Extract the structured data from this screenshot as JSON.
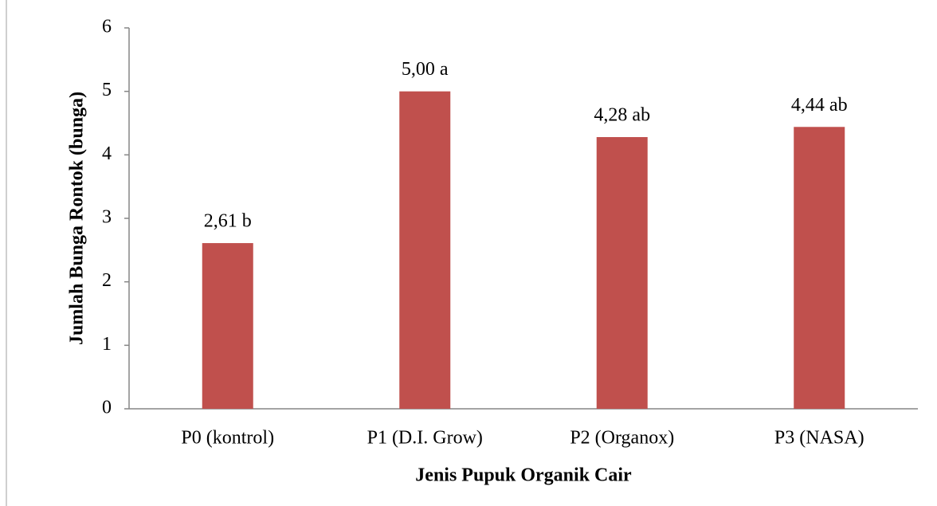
{
  "chart_data": {
    "type": "bar",
    "x_label": "Jenis Pupuk Organik Cair",
    "y_label": "Jumlah Bunga Rontok (bunga)",
    "categories": [
      "P0 (kontrol)",
      "P1 (D.I. Grow)",
      "P2 (Organox)",
      "P3 (NASA)"
    ],
    "values": [
      2.61,
      5.0,
      4.28,
      4.44
    ],
    "value_labels": [
      "2,61 b",
      "5,00 a",
      "4,28 ab",
      "4,44 ab"
    ],
    "color": "#c0504d",
    "ylim": [
      0,
      6
    ],
    "yticks": [
      0,
      1,
      2,
      3,
      4,
      5,
      6
    ],
    "grid": false
  }
}
